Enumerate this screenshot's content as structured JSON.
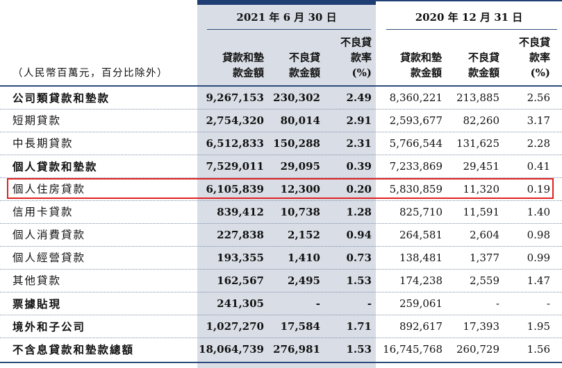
{
  "header": {
    "period_2021": "2021 年 6 月 30 日",
    "period_2020": "2020 年 12 月 31 日",
    "unit_note": "（人民幣百萬元，百分比除外）",
    "col_loans": [
      "貸款和墊",
      "款金額"
    ],
    "col_npl": [
      "不良貸",
      "款金額"
    ],
    "col_ratio": [
      "不良貸",
      "款率",
      "(%)"
    ]
  },
  "rows": [
    {
      "label": "公司類貸款和墊款",
      "bold": true,
      "c1": "9,267,153",
      "c2": "230,302",
      "c3": "2.49",
      "d1": "8,360,221",
      "d2": "213,885",
      "d3": "2.56"
    },
    {
      "label": "短期貸款",
      "bold": false,
      "c1": "2,754,320",
      "c2": "80,014",
      "c3": "2.91",
      "d1": "2,593,677",
      "d2": "82,260",
      "d3": "3.17"
    },
    {
      "label": "中長期貸款",
      "bold": false,
      "c1": "6,512,833",
      "c2": "150,288",
      "c3": "2.31",
      "d1": "5,766,544",
      "d2": "131,625",
      "d3": "2.28"
    },
    {
      "label": "個人貸款和墊款",
      "bold": true,
      "c1": "7,529,011",
      "c2": "29,095",
      "c3": "0.39",
      "d1": "7,233,869",
      "d2": "29,451",
      "d3": "0.41"
    },
    {
      "label": "個人住房貸款",
      "bold": false,
      "c1": "6,105,839",
      "c2": "12,300",
      "c3": "0.20",
      "d1": "5,830,859",
      "d2": "11,320",
      "d3": "0.19"
    },
    {
      "label": "信用卡貸款",
      "bold": false,
      "c1": "839,412",
      "c2": "10,738",
      "c3": "1.28",
      "d1": "825,710",
      "d2": "11,591",
      "d3": "1.40"
    },
    {
      "label": "個人消費貸款",
      "bold": false,
      "c1": "227,838",
      "c2": "2,152",
      "c3": "0.94",
      "d1": "264,581",
      "d2": "2,604",
      "d3": "0.98"
    },
    {
      "label": "個人經營貸款",
      "bold": false,
      "c1": "193,355",
      "c2": "1,410",
      "c3": "0.73",
      "d1": "138,481",
      "d2": "1,377",
      "d3": "0.99"
    },
    {
      "label": "其他貸款",
      "bold": false,
      "c1": "162,567",
      "c2": "2,495",
      "c3": "1.53",
      "d1": "174,238",
      "d2": "2,559",
      "d3": "1.47"
    },
    {
      "label": "票據貼現",
      "bold": true,
      "c1": "241,305",
      "c2": "-",
      "c3": "-",
      "d1": "259,061",
      "d2": "-",
      "d3": "-"
    },
    {
      "label": "境外和子公司",
      "bold": true,
      "c1": "1,027,270",
      "c2": "17,584",
      "c3": "1.71",
      "d1": "892,617",
      "d2": "17,393",
      "d3": "1.95"
    },
    {
      "label": "不含息貸款和墊款總額",
      "bold": true,
      "c1": "18,064,739",
      "c2": "276,981",
      "c3": "1.53",
      "d1": "16,745,768",
      "d2": "260,729",
      "d3": "1.56"
    }
  ]
}
